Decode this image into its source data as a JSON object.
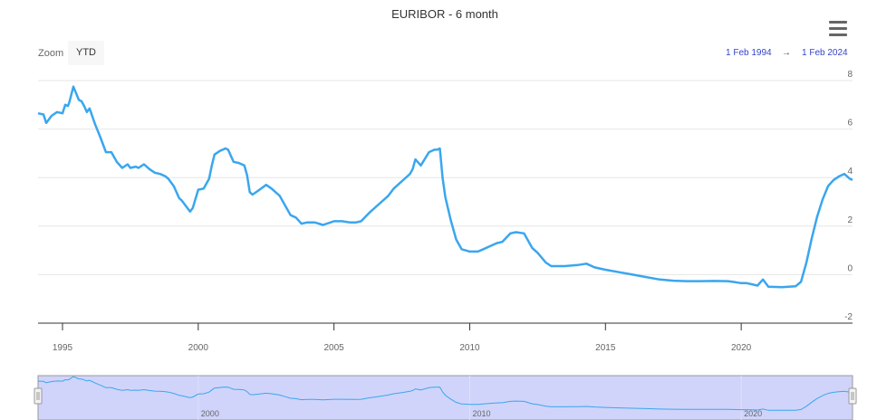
{
  "title": "EURIBOR - 6 month",
  "menu": {
    "icon": "hamburger-menu-icon"
  },
  "range_selector": {
    "zoom_label": "Zoom",
    "buttons": [
      "YTD"
    ],
    "from": "1 Feb 1994",
    "arrow": "→",
    "to": "1 Feb 2024"
  },
  "colors": {
    "line": "#3aa6ee",
    "navigator_mask": "#d0d4fb",
    "navigator_line": "#3aa6ee",
    "grid": "#e6e6e6",
    "axis_text": "#666666",
    "range_date": "#3344cc"
  },
  "chart_data": {
    "type": "line",
    "title": "EURIBOR - 6 month",
    "xlabel": "",
    "ylabel": "",
    "xlim": [
      1994.1,
      2024.1
    ],
    "ylim": [
      -2,
      8
    ],
    "x_ticks": [
      1995,
      2000,
      2005,
      2010,
      2015,
      2020
    ],
    "y_ticks": [
      -2,
      0,
      2,
      4,
      6,
      8
    ],
    "navigator_x_ticks": [
      2000,
      2010,
      2020
    ],
    "grid": true,
    "legend": "none",
    "series": [
      {
        "x": [
          1994.1,
          1994.3,
          1994.4,
          1994.6,
          1994.8,
          1995.0,
          1995.1,
          1995.2,
          1995.25,
          1995.4,
          1995.6,
          1995.7,
          1995.8,
          1995.9,
          1996.0,
          1996.2,
          1996.4,
          1996.5,
          1996.6,
          1996.8,
          1997.0,
          1997.2,
          1997.4,
          1997.5,
          1997.7,
          1997.8,
          1998.0,
          1998.2,
          1998.4,
          1998.6,
          1998.8,
          1998.9,
          1999.1,
          1999.3,
          1999.4,
          1999.6,
          1999.7,
          1999.8,
          2000.0,
          2000.2,
          2000.4,
          2000.5,
          2000.6,
          2000.8,
          2000.9,
          2001.0,
          2001.1,
          2001.3,
          2001.5,
          2001.6,
          2001.7,
          2001.8,
          2001.9,
          2002.0,
          2002.2,
          2002.5,
          2002.7,
          2003.0,
          2003.2,
          2003.4,
          2003.6,
          2003.8,
          2004.0,
          2004.3,
          2004.6,
          2005.0,
          2005.3,
          2005.6,
          2005.8,
          2006.0,
          2006.3,
          2006.6,
          2007.0,
          2007.2,
          2007.5,
          2007.6,
          2007.8,
          2007.9,
          2008.0,
          2008.2,
          2008.5,
          2008.7,
          2008.8,
          2008.9,
          2009.0,
          2009.1,
          2009.3,
          2009.5,
          2009.7,
          2010.0,
          2010.3,
          2010.5,
          2010.7,
          2011.0,
          2011.2,
          2011.5,
          2011.7,
          2012.0,
          2012.3,
          2012.5,
          2012.8,
          2013.0,
          2013.5,
          2014.0,
          2014.3,
          2014.6,
          2015.0,
          2015.5,
          2016.0,
          2016.5,
          2017.0,
          2017.5,
          2018.0,
          2018.5,
          2019.0,
          2019.5,
          2019.7,
          2020.0,
          2020.2,
          2020.4,
          2020.6,
          2020.8,
          2021.0,
          2021.5,
          2022.0,
          2022.2,
          2022.4,
          2022.6,
          2022.8,
          2023.0,
          2023.2,
          2023.4,
          2023.6,
          2023.8,
          2024.0,
          2024.1
        ],
        "y": [
          6.65,
          6.6,
          6.25,
          6.55,
          6.7,
          6.65,
          7.0,
          6.95,
          7.1,
          7.75,
          7.2,
          7.15,
          6.95,
          6.7,
          6.85,
          6.2,
          5.65,
          5.35,
          5.05,
          5.05,
          4.65,
          4.4,
          4.55,
          4.4,
          4.45,
          4.4,
          4.55,
          4.35,
          4.2,
          4.15,
          4.05,
          3.95,
          3.65,
          3.15,
          3.05,
          2.75,
          2.6,
          2.75,
          3.5,
          3.55,
          3.95,
          4.5,
          4.95,
          5.1,
          5.15,
          5.2,
          5.15,
          4.65,
          4.6,
          4.55,
          4.5,
          4.1,
          3.4,
          3.3,
          3.45,
          3.7,
          3.55,
          3.25,
          2.85,
          2.45,
          2.35,
          2.1,
          2.15,
          2.15,
          2.05,
          2.2,
          2.2,
          2.15,
          2.15,
          2.2,
          2.55,
          2.85,
          3.25,
          3.55,
          3.85,
          3.95,
          4.15,
          4.35,
          4.75,
          4.5,
          5.05,
          5.15,
          5.15,
          5.2,
          4.0,
          3.2,
          2.25,
          1.45,
          1.05,
          0.95,
          0.95,
          1.05,
          1.15,
          1.3,
          1.35,
          1.7,
          1.75,
          1.7,
          1.1,
          0.9,
          0.5,
          0.35,
          0.35,
          0.4,
          0.45,
          0.3,
          0.2,
          0.1,
          0.0,
          -0.1,
          -0.2,
          -0.25,
          -0.27,
          -0.27,
          -0.26,
          -0.27,
          -0.3,
          -0.35,
          -0.35,
          -0.4,
          -0.45,
          -0.2,
          -0.5,
          -0.52,
          -0.48,
          -0.3,
          0.5,
          1.5,
          2.4,
          3.1,
          3.65,
          3.9,
          4.05,
          4.15,
          3.95,
          3.9
        ]
      }
    ]
  }
}
